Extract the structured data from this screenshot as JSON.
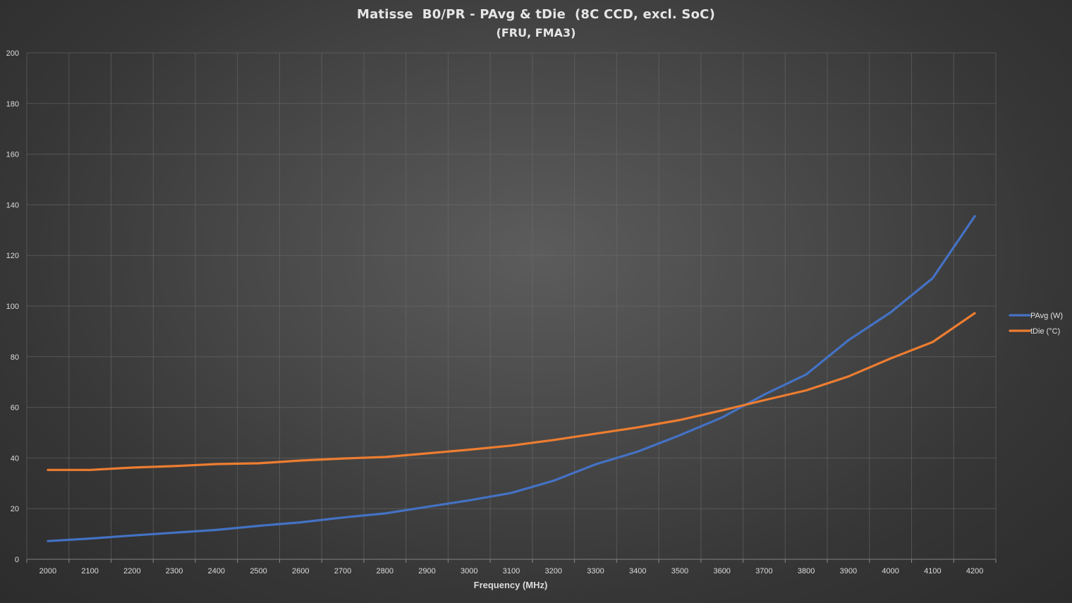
{
  "chart_data": {
    "type": "line",
    "title": "Matisse  B0/PR - PAvg & tDie  (8C CCD, excl. SoC)",
    "subtitle": "(FRU, FMA3)",
    "xlabel": "Frequency (MHz)",
    "ylabel": "",
    "x": [
      2000,
      2100,
      2200,
      2300,
      2400,
      2500,
      2600,
      2700,
      2800,
      2900,
      3000,
      3100,
      3200,
      3300,
      3400,
      3500,
      3600,
      3700,
      3800,
      3900,
      4000,
      4100,
      4200
    ],
    "ylim": [
      0,
      200
    ],
    "yticks": [
      0,
      20,
      40,
      60,
      80,
      100,
      120,
      140,
      160,
      180,
      200
    ],
    "grid": true,
    "legend_position": "right",
    "series": [
      {
        "name": "PAvg (W)",
        "color": "#4472c4",
        "values": [
          7.2,
          8.2,
          9.4,
          10.5,
          11.6,
          13.2,
          14.6,
          16.5,
          18.1,
          20.7,
          23.3,
          26.2,
          31.0,
          37.5,
          42.5,
          49.0,
          56.0,
          65.0,
          73.0,
          86.5,
          97.5,
          111.0,
          135.5
        ]
      },
      {
        "name": "tDie (°C)",
        "color": "#ed7d31",
        "values": [
          35.3,
          35.3,
          36.2,
          36.8,
          37.6,
          37.9,
          39.0,
          39.8,
          40.4,
          41.8,
          43.3,
          44.9,
          47.1,
          49.6,
          52.1,
          55.0,
          58.8,
          62.8,
          66.7,
          72.2,
          79.3,
          85.8,
          97.2
        ]
      }
    ]
  }
}
